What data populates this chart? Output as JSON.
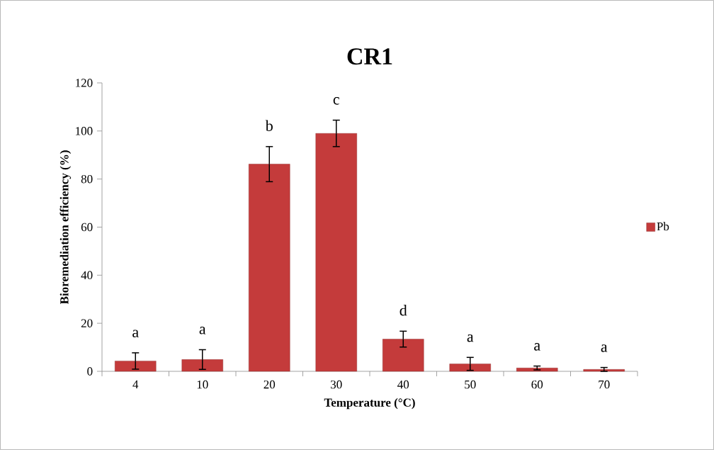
{
  "chart_data": {
    "type": "bar",
    "title": "CR1",
    "xlabel": "Temperature (°C)",
    "ylabel": "Bioremediation efficiency (%)",
    "categories": [
      "4",
      "10",
      "20",
      "30",
      "40",
      "50",
      "60",
      "70"
    ],
    "series": [
      {
        "name": "Pb",
        "color": "#c43b3b",
        "values": [
          4.3,
          4.9,
          86.2,
          99.0,
          13.4,
          3.1,
          1.4,
          0.8
        ],
        "errors": [
          3.4,
          4.1,
          7.3,
          5.5,
          3.3,
          2.7,
          0.8,
          0.8
        ]
      }
    ],
    "ylim": [
      0,
      120
    ],
    "yticks": [
      0,
      20,
      40,
      60,
      80,
      100,
      120
    ],
    "legend": "right",
    "grid": false,
    "annotations": [
      "a",
      "a",
      "b",
      "c",
      "d",
      "a",
      "a",
      "a"
    ]
  }
}
